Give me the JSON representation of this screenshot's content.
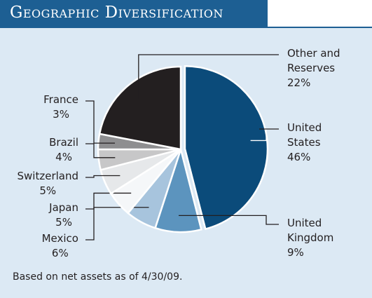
{
  "chart_data": {
    "type": "pie",
    "title": "Geographic Diversification",
    "categories": [
      "United States",
      "United Kingdom",
      "Mexico",
      "Japan",
      "Switzerland",
      "Brazil",
      "France",
      "Other and Reserves"
    ],
    "values": [
      46,
      9,
      6,
      5,
      5,
      4,
      3,
      22
    ],
    "value_labels": [
      "46%",
      "9%",
      "6%",
      "5%",
      "5%",
      "4%",
      "3%",
      "22%"
    ],
    "colors": [
      "#0b4b7a",
      "#5c94be",
      "#a7c4dd",
      "#f5f7f9",
      "#e6e8ea",
      "#c7c7c8",
      "#8e8e90",
      "#231f20"
    ],
    "footnote": "Based on net assets as of 4/30/09."
  }
}
